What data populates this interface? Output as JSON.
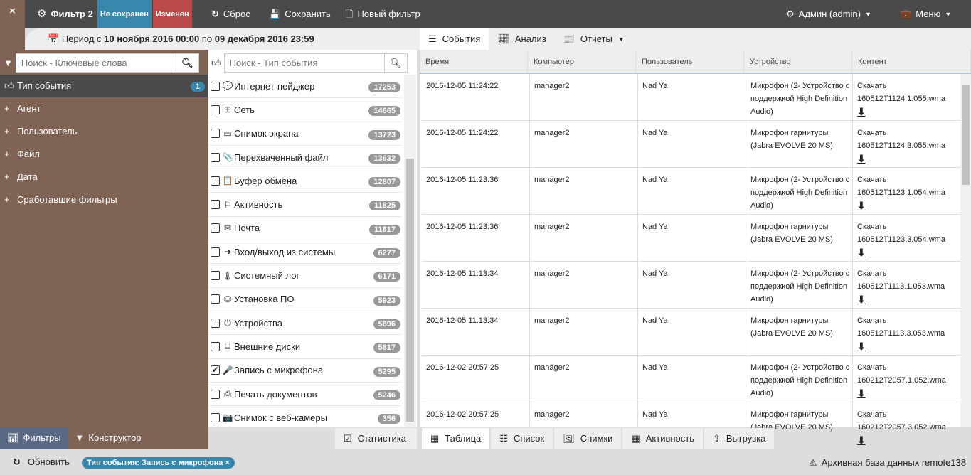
{
  "topbar": {
    "close": "×",
    "filter_name": "Фильтр 2",
    "badge_unsaved": "Не сохранен",
    "badge_changed": "Изменен",
    "reset": "Сброс",
    "save": "Сохранить",
    "new_filter": "Новый фильтр",
    "user": "Админ (admin)",
    "menu": "Меню",
    "colors": {
      "unsaved": "#3a87ad",
      "changed": "#b94a48"
    }
  },
  "period": {
    "prefix": "Период с ",
    "from": "10 ноября 2016 00:00",
    "mid": " по ",
    "to": "09 декабря 2016 23:59"
  },
  "left": {
    "search_placeholder": "Поиск - Ключевые слова",
    "items": [
      {
        "label": "Тип события",
        "count": "1",
        "icon": "thumbs-up-icon"
      },
      {
        "label": "Агент"
      },
      {
        "label": "Пользователь"
      },
      {
        "label": "Файл"
      },
      {
        "label": "Дата"
      },
      {
        "label": "Сработавшие фильтры"
      }
    ]
  },
  "events": {
    "search_placeholder": "Поиск - Тип события",
    "items": [
      {
        "label": "Интернет-пейджер",
        "count": "17253",
        "icon": "💬",
        "checked": false
      },
      {
        "label": "Сеть",
        "count": "14665",
        "icon": "⊞",
        "checked": false
      },
      {
        "label": "Снимок экрана",
        "count": "13723",
        "icon": "▭",
        "checked": false
      },
      {
        "label": "Перехваченный файл",
        "count": "13632",
        "icon": "📎",
        "checked": false
      },
      {
        "label": "Буфер обмена",
        "count": "12807",
        "icon": "📋",
        "checked": false
      },
      {
        "label": "Активность",
        "count": "11825",
        "icon": "⚐",
        "checked": false
      },
      {
        "label": "Почта",
        "count": "11817",
        "icon": "✉",
        "checked": false
      },
      {
        "label": "Вход/выход из системы",
        "count": "6277",
        "icon": "➜",
        "checked": false
      },
      {
        "label": "Системный лог",
        "count": "6171",
        "icon": "🌡",
        "checked": false
      },
      {
        "label": "Установка ПО",
        "count": "5923",
        "icon": "⛁",
        "checked": false
      },
      {
        "label": "Устройства",
        "count": "5896",
        "icon": "⏻",
        "checked": false
      },
      {
        "label": "Внешние диски",
        "count": "5817",
        "icon": "⌸",
        "checked": false
      },
      {
        "label": "Запись с микрофона",
        "count": "5295",
        "icon": "🎤",
        "checked": true
      },
      {
        "label": "Печать документов",
        "count": "5246",
        "icon": "⎙",
        "checked": false
      },
      {
        "label": "Снимок с веб-камеры",
        "count": "356",
        "icon": "📷",
        "checked": false
      }
    ]
  },
  "tabs": [
    {
      "label": "События",
      "icon": "list-icon"
    },
    {
      "label": "Анализ",
      "icon": "chart-line-icon"
    },
    {
      "label": "Отчеты",
      "icon": "report-icon"
    }
  ],
  "table": {
    "headers": [
      "Время",
      "Компьютер",
      "Пользователь",
      "Устройство",
      "Контент"
    ],
    "download_label": "Скачать",
    "rows": [
      [
        "2016-12-05 11:24:22",
        "manager2",
        "Nad Ya",
        "Микрофон (2- Устройство с поддержкой High Definition Audio)",
        "160512T1124.1.055.wma"
      ],
      [
        "2016-12-05 11:24:22",
        "manager2",
        "Nad Ya",
        "Микрофон гарнитуры (Jabra EVOLVE 20 MS)",
        "160512T1124.3.055.wma"
      ],
      [
        "2016-12-05 11:23:36",
        "manager2",
        "Nad Ya",
        "Микрофон (2- Устройство с поддержкой High Definition Audio)",
        "160512T1123.1.054.wma"
      ],
      [
        "2016-12-05 11:23:36",
        "manager2",
        "Nad Ya",
        "Микрофон гарнитуры (Jabra EVOLVE 20 MS)",
        "160512T1123.3.054.wma"
      ],
      [
        "2016-12-05 11:13:34",
        "manager2",
        "Nad Ya",
        "Микрофон (2- Устройство с поддержкой High Definition Audio)",
        "160512T1113.1.053.wma"
      ],
      [
        "2016-12-05 11:13:34",
        "manager2",
        "Nad Ya",
        "Микрофон гарнитуры (Jabra EVOLVE 20 MS)",
        "160512T1113.3.053.wma"
      ],
      [
        "2016-12-02 20:57:25",
        "manager2",
        "Nad Ya",
        "Микрофон (2- Устройство с поддержкой High Definition Audio)",
        "160212T2057.1.052.wma"
      ],
      [
        "2016-12-02 20:57:25",
        "manager2",
        "Nad Ya",
        "Микрофон гарнитуры (Jabra EVOLVE 20 MS)",
        "160212T2057.3.052.wma"
      ]
    ]
  },
  "bottom": {
    "filters": "Фильтры",
    "constructor": "Конструктор",
    "statistics": "Статистика",
    "view_tabs": [
      "Таблица",
      "Список",
      "Снимки",
      "Активность",
      "Выгрузка"
    ]
  },
  "status": {
    "refresh": "Обновить",
    "chip": "Тип события: Запись с микрофона",
    "chip_close": "×",
    "archive": "Архивная база данных remote138"
  }
}
